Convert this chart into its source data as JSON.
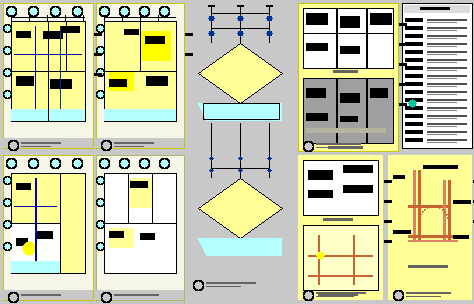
{
  "bg_color": [
    200,
    200,
    200
  ],
  "drawing_bg": [
    245,
    245,
    232
  ],
  "yellow": [
    255,
    255,
    150
  ],
  "bright_yellow": [
    255,
    255,
    0
  ],
  "cyan_light": [
    180,
    255,
    255
  ],
  "white": [
    255,
    255,
    255
  ],
  "black": [
    0,
    0,
    0
  ],
  "dark_gray": [
    100,
    100,
    100
  ],
  "mid_gray": [
    160,
    160,
    160
  ],
  "blue": [
    0,
    0,
    180
  ],
  "dark_blue": [
    0,
    50,
    150
  ],
  "orange": [
    200,
    100,
    50
  ],
  "pink_orange": [
    220,
    130,
    100
  ],
  "green_circle": [
    0,
    200,
    150
  ],
  "dashed_border": [
    180,
    180,
    100
  ],
  "yellow_border": [
    200,
    200,
    0
  ]
}
